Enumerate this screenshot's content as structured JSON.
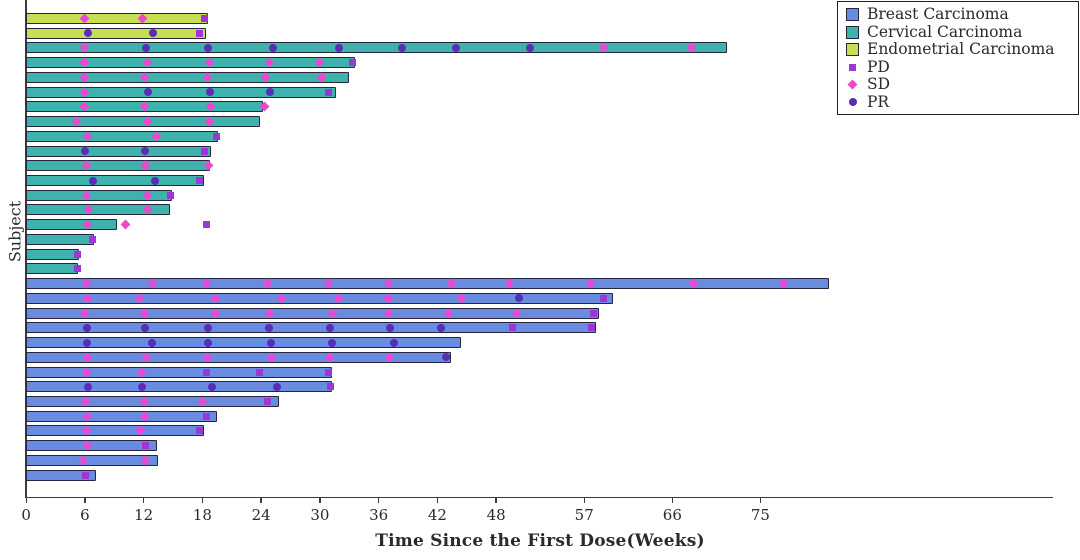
{
  "chart_data": {
    "type": "bar",
    "subtype": "swimmer-plot",
    "orientation": "horizontal",
    "title": "",
    "xlabel": "Time Since the First Dose(Weeks)",
    "ylabel": "Subject",
    "x_ticks": [
      0,
      6,
      12,
      18,
      24,
      30,
      36,
      42,
      48,
      57,
      66,
      75
    ],
    "xlim": [
      0,
      104
    ],
    "grid": false,
    "legend_position": "top-right",
    "groups": [
      {
        "name": "Breast Carcinoma",
        "color": "#6a8ce0"
      },
      {
        "name": "Cervical Carcinoma",
        "color": "#3eb3ae"
      },
      {
        "name": "Endometrial Carcinoma",
        "color": "#c6de51"
      }
    ],
    "marker_types": [
      {
        "name": "PD",
        "shape": "square",
        "color": "#9c37d6"
      },
      {
        "name": "SD",
        "shape": "diamond",
        "color": "#e74ace"
      },
      {
        "name": "PR",
        "shape": "circle",
        "color": "#5a2db5"
      }
    ],
    "subjects": [
      {
        "group": "Endometrial Carcinoma",
        "weeks": 18.6,
        "markers": [
          {
            "t": "SD",
            "x": 6
          },
          {
            "t": "SD",
            "x": 12
          },
          {
            "t": "PD",
            "x": 18.3
          }
        ]
      },
      {
        "group": "Endometrial Carcinoma",
        "weeks": 18.4,
        "markers": [
          {
            "t": "PR",
            "x": 6.4
          },
          {
            "t": "PR",
            "x": 13
          },
          {
            "t": "PD",
            "x": 17.8
          }
        ]
      },
      {
        "group": "Cervical Carcinoma",
        "weeks": 71.7,
        "markers": [
          {
            "t": "SD",
            "x": 6
          },
          {
            "t": "PR",
            "x": 12.3
          },
          {
            "t": "PR",
            "x": 18.6
          },
          {
            "t": "PR",
            "x": 25.3
          },
          {
            "t": "PR",
            "x": 32
          },
          {
            "t": "PR",
            "x": 38.5
          },
          {
            "t": "PR",
            "x": 44
          },
          {
            "t": "PR",
            "x": 51.5
          },
          {
            "t": "SD",
            "x": 59
          },
          {
            "t": "SD",
            "x": 68
          }
        ]
      },
      {
        "group": "Cervical Carcinoma",
        "weeks": 33.7,
        "markers": [
          {
            "t": "SD",
            "x": 6
          },
          {
            "t": "SD",
            "x": 12.5
          },
          {
            "t": "SD",
            "x": 18.8
          },
          {
            "t": "SD",
            "x": 24.9
          },
          {
            "t": "SD",
            "x": 30
          },
          {
            "t": "PD",
            "x": 33.4
          }
        ]
      },
      {
        "group": "Cervical Carcinoma",
        "weeks": 33.0,
        "markers": [
          {
            "t": "SD",
            "x": 6
          },
          {
            "t": "SD",
            "x": 12.2
          },
          {
            "t": "SD",
            "x": 18.6
          },
          {
            "t": "SD",
            "x": 24.5
          },
          {
            "t": "SD",
            "x": 30.2
          }
        ]
      },
      {
        "group": "Cervical Carcinoma",
        "weeks": 31.7,
        "markers": [
          {
            "t": "SD",
            "x": 6
          },
          {
            "t": "PR",
            "x": 12.5
          },
          {
            "t": "PR",
            "x": 18.8
          },
          {
            "t": "PR",
            "x": 25
          },
          {
            "t": "PD",
            "x": 31
          }
        ]
      },
      {
        "group": "Cervical Carcinoma",
        "weeks": 24.3,
        "markers": [
          {
            "t": "SD",
            "x": 6
          },
          {
            "t": "SD",
            "x": 12.2
          },
          {
            "t": "SD",
            "x": 18.9
          },
          {
            "t": "SD",
            "x": 24.4
          }
        ]
      },
      {
        "group": "Cervical Carcinoma",
        "weeks": 24.0,
        "markers": [
          {
            "t": "SD",
            "x": 5.2
          },
          {
            "t": "SD",
            "x": 12.5
          },
          {
            "t": "SD",
            "x": 18.8
          }
        ]
      },
      {
        "group": "Cervical Carcinoma",
        "weeks": 19.7,
        "markers": [
          {
            "t": "SD",
            "x": 6.3
          },
          {
            "t": "SD",
            "x": 13.4
          },
          {
            "t": "PD",
            "x": 19.5
          }
        ]
      },
      {
        "group": "Cervical Carcinoma",
        "weeks": 18.9,
        "markers": [
          {
            "t": "PR",
            "x": 6.1
          },
          {
            "t": "PR",
            "x": 12.2
          },
          {
            "t": "PD",
            "x": 18.3
          }
        ]
      },
      {
        "group": "Cervical Carcinoma",
        "weeks": 18.8,
        "markers": [
          {
            "t": "SD",
            "x": 6.2
          },
          {
            "t": "SD",
            "x": 12.3
          },
          {
            "t": "SD",
            "x": 18.7
          }
        ]
      },
      {
        "group": "Cervical Carcinoma",
        "weeks": 18.2,
        "markers": [
          {
            "t": "PR",
            "x": 6.9
          },
          {
            "t": "PR",
            "x": 13.2
          },
          {
            "t": "PD",
            "x": 17.8
          }
        ]
      },
      {
        "group": "Cervical Carcinoma",
        "weeks": 15.0,
        "markers": [
          {
            "t": "SD",
            "x": 6.2
          },
          {
            "t": "SD",
            "x": 12.5
          },
          {
            "t": "PD",
            "x": 14.8
          }
        ]
      },
      {
        "group": "Cervical Carcinoma",
        "weeks": 14.8,
        "markers": [
          {
            "t": "SD",
            "x": 6.4
          },
          {
            "t": "SD",
            "x": 12.5
          }
        ]
      },
      {
        "group": "Cervical Carcinoma",
        "weeks": 9.3,
        "markers": [
          {
            "t": "SD",
            "x": 6.3
          },
          {
            "t": "SD",
            "x": 10.2
          },
          {
            "t": "PD",
            "x": 18.5
          }
        ]
      },
      {
        "group": "Cervical Carcinoma",
        "weeks": 7.0,
        "markers": [
          {
            "t": "PD",
            "x": 6.8
          }
        ]
      },
      {
        "group": "Cervical Carcinoma",
        "weeks": 5.5,
        "markers": [
          {
            "t": "PD",
            "x": 5.3
          }
        ]
      },
      {
        "group": "Cervical Carcinoma",
        "weeks": 5.4,
        "markers": [
          {
            "t": "PD",
            "x": 5.3
          }
        ]
      },
      {
        "group": "Breast Carcinoma",
        "weeks": 82.1,
        "markers": [
          {
            "t": "SD",
            "x": 6.2
          },
          {
            "t": "SD",
            "x": 13
          },
          {
            "t": "SD",
            "x": 18.5
          },
          {
            "t": "SD",
            "x": 24.7
          },
          {
            "t": "SD",
            "x": 30.9
          },
          {
            "t": "SD",
            "x": 37.1
          },
          {
            "t": "SD",
            "x": 43.5
          },
          {
            "t": "SD",
            "x": 49.4
          },
          {
            "t": "SD",
            "x": 57.7
          },
          {
            "t": "SD",
            "x": 68.2
          },
          {
            "t": "SD",
            "x": 77.4
          }
        ]
      },
      {
        "group": "Breast Carcinoma",
        "weeks": 60.0,
        "markers": [
          {
            "t": "SD",
            "x": 6.3
          },
          {
            "t": "SD",
            "x": 11.6
          },
          {
            "t": "SD",
            "x": 19.4
          },
          {
            "t": "SD",
            "x": 26.1
          },
          {
            "t": "SD",
            "x": 32
          },
          {
            "t": "SD",
            "x": 37.1
          },
          {
            "t": "SD",
            "x": 44.5
          },
          {
            "t": "PR",
            "x": 50.4
          },
          {
            "t": "PD",
            "x": 59
          }
        ]
      },
      {
        "group": "Breast Carcinoma",
        "weeks": 58.6,
        "markers": [
          {
            "t": "SD",
            "x": 6
          },
          {
            "t": "SD",
            "x": 12.2
          },
          {
            "t": "SD",
            "x": 19.4
          },
          {
            "t": "SD",
            "x": 24.9
          },
          {
            "t": "SD",
            "x": 31.4
          },
          {
            "t": "SD",
            "x": 37.1
          },
          {
            "t": "SD",
            "x": 43.2
          },
          {
            "t": "SD",
            "x": 50.2
          },
          {
            "t": "PD",
            "x": 58
          }
        ]
      },
      {
        "group": "Breast Carcinoma",
        "weeks": 58.3,
        "markers": [
          {
            "t": "PR",
            "x": 6.3
          },
          {
            "t": "PR",
            "x": 12.2
          },
          {
            "t": "PR",
            "x": 18.6
          },
          {
            "t": "PR",
            "x": 24.9
          },
          {
            "t": "PR",
            "x": 31.1
          },
          {
            "t": "PR",
            "x": 37.2
          },
          {
            "t": "PR",
            "x": 42.4
          },
          {
            "t": "PD",
            "x": 49.7
          },
          {
            "t": "PD",
            "x": 57.8
          }
        ]
      },
      {
        "group": "Breast Carcinoma",
        "weeks": 44.5,
        "markers": [
          {
            "t": "PR",
            "x": 6.3
          },
          {
            "t": "PR",
            "x": 12.9
          },
          {
            "t": "PR",
            "x": 18.6
          },
          {
            "t": "PR",
            "x": 25.1
          },
          {
            "t": "PR",
            "x": 31.3
          },
          {
            "t": "PR",
            "x": 37.6
          }
        ]
      },
      {
        "group": "Breast Carcinoma",
        "weeks": 43.5,
        "markers": [
          {
            "t": "SD",
            "x": 6.3
          },
          {
            "t": "SD",
            "x": 12.4
          },
          {
            "t": "SD",
            "x": 18.6
          },
          {
            "t": "SD",
            "x": 25.1
          },
          {
            "t": "SD",
            "x": 31.1
          },
          {
            "t": "SD",
            "x": 37.2
          },
          {
            "t": "PR",
            "x": 43
          }
        ]
      },
      {
        "group": "Breast Carcinoma",
        "weeks": 31.3,
        "markers": [
          {
            "t": "SD",
            "x": 6.2
          },
          {
            "t": "SD",
            "x": 11.8
          },
          {
            "t": "PD",
            "x": 18.5
          },
          {
            "t": "PD",
            "x": 23.9
          },
          {
            "t": "PD",
            "x": 31
          }
        ]
      },
      {
        "group": "Breast Carcinoma",
        "weeks": 31.3,
        "markers": [
          {
            "t": "PR",
            "x": 6.4
          },
          {
            "t": "PR",
            "x": 11.9
          },
          {
            "t": "PR",
            "x": 19
          },
          {
            "t": "PR",
            "x": 25.7
          },
          {
            "t": "PD",
            "x": 31.2
          }
        ]
      },
      {
        "group": "Breast Carcinoma",
        "weeks": 25.9,
        "markers": [
          {
            "t": "SD",
            "x": 6.1
          },
          {
            "t": "SD",
            "x": 12.2
          },
          {
            "t": "SD",
            "x": 18.1
          },
          {
            "t": "PD",
            "x": 24.7
          }
        ]
      },
      {
        "group": "Breast Carcinoma",
        "weeks": 19.6,
        "markers": [
          {
            "t": "SD",
            "x": 6.3
          },
          {
            "t": "SD",
            "x": 12.2
          },
          {
            "t": "PD",
            "x": 18.5
          }
        ]
      },
      {
        "group": "Breast Carcinoma",
        "weeks": 18.2,
        "markers": [
          {
            "t": "SD",
            "x": 6.2
          },
          {
            "t": "SD",
            "x": 11.7
          },
          {
            "t": "PD",
            "x": 17.8
          }
        ]
      },
      {
        "group": "Breast Carcinoma",
        "weeks": 13.4,
        "markers": [
          {
            "t": "SD",
            "x": 6.3
          },
          {
            "t": "PD",
            "x": 12.3
          }
        ]
      },
      {
        "group": "Breast Carcinoma",
        "weeks": 13.5,
        "markers": [
          {
            "t": "SD",
            "x": 5.9
          },
          {
            "t": "SD",
            "x": 12.3
          }
        ]
      },
      {
        "group": "Breast Carcinoma",
        "weeks": 7.2,
        "markers": [
          {
            "t": "PD",
            "x": 6.1
          }
        ]
      }
    ]
  }
}
